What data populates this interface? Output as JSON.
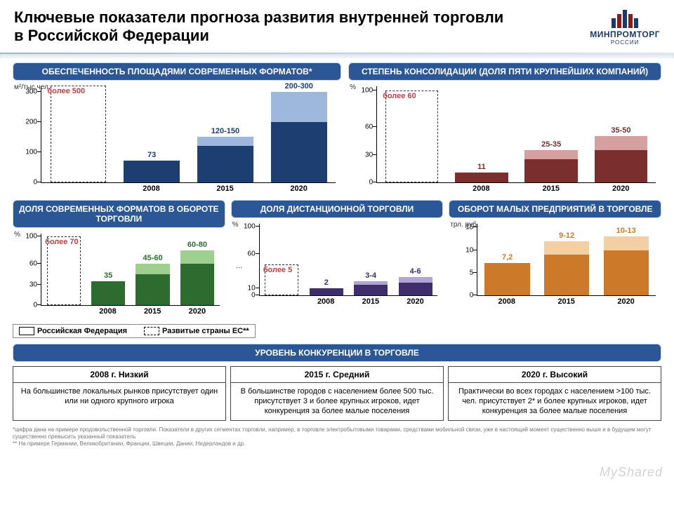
{
  "page_title": "Ключевые показатели прогноза развития внутренней торговли в Российской Федерации",
  "logo": {
    "main": "МИНПРОМТОРГ",
    "sub": "РОССИИ"
  },
  "categories": [
    "2008",
    "2015",
    "2020"
  ],
  "legend": {
    "rf": "Российская Федерация",
    "eu": "Развитые страны ЕС**"
  },
  "chart1": {
    "title": "ОБЕСПЕЧЕННОСТЬ ПЛОЩАДЯМИ СОВРЕМЕННЫХ ФОРМАТОВ*",
    "y_unit": "м²/тыс.чел.",
    "ymax": 320,
    "yticks": [
      0,
      100,
      200,
      300
    ],
    "eu_label": "более 500",
    "eu_value": 500,
    "eu_draw": 320,
    "colors": {
      "low": "#1d3e70",
      "high": "#9db8dc",
      "eu_text": "#c04040"
    },
    "bars": [
      {
        "label": "73",
        "low": 73,
        "high": 73
      },
      {
        "label": "120-150",
        "low": 120,
        "high": 150
      },
      {
        "label": "200-300",
        "low": 200,
        "high": 300
      }
    ]
  },
  "chart2": {
    "title": "СТЕПЕНЬ КОНСОЛИДАЦИИ (ДОЛЯ ПЯТИ КРУПНЕЙШИХ КОМПАНИЙ)",
    "y_unit": "%",
    "ymax": 105,
    "yticks": [
      0,
      30,
      60,
      100
    ],
    "eu_label": "более 60",
    "eu_value": 60,
    "eu_draw": 100,
    "colors": {
      "low": "#7a2e2e",
      "high": "#d7a0a0",
      "eu_text": "#c04040"
    },
    "bars": [
      {
        "label": "11",
        "low": 11,
        "high": 11
      },
      {
        "label": "25-35",
        "low": 25,
        "high": 35
      },
      {
        "label": "35-50",
        "low": 35,
        "high": 50
      }
    ]
  },
  "chart3": {
    "title": "ДОЛЯ СОВРЕМЕННЫХ ФОРМАТОВ В ОБОРОТЕ ТОРГОВЛИ",
    "y_unit": "%",
    "ymax": 105,
    "yticks": [
      0,
      30,
      60,
      100
    ],
    "eu_label": "более 70",
    "eu_value": 70,
    "eu_draw": 100,
    "colors": {
      "low": "#2e6b2e",
      "high": "#9fcf8f",
      "eu_text": "#c04040"
    },
    "bars": [
      {
        "label": "35",
        "low": 35,
        "high": 35
      },
      {
        "label": "45-60",
        "low": 45,
        "high": 60
      },
      {
        "label": "60-80",
        "low": 60,
        "high": 80
      }
    ]
  },
  "chart4": {
    "title": "ДОЛЯ ДИСТАНЦИОННОЙ ТОРГОВЛИ",
    "y_unit": "%",
    "ymax": 105,
    "yticks": [
      0,
      10,
      60,
      100
    ],
    "ytick_break": true,
    "eu_label": "более 5",
    "eu_value": 5,
    "eu_draw": 45,
    "colors": {
      "low": "#3e2e6b",
      "high": "#b0a4d4",
      "eu_text": "#c04040"
    },
    "bars": [
      {
        "label": "2",
        "low": 2,
        "high": 2,
        "draw_low": 10,
        "draw_high": 10
      },
      {
        "label": "3-4",
        "low": 3,
        "high": 4,
        "draw_low": 15,
        "draw_high": 20
      },
      {
        "label": "4-6",
        "low": 4,
        "high": 6,
        "draw_low": 18,
        "draw_high": 27
      }
    ]
  },
  "chart5": {
    "title": "ОБОРОТ МАЛЫХ ПРЕДПРИЯТИЙ В ТОРГОВЛЕ",
    "y_unit": "трл. руб.",
    "ymax": 16,
    "yticks": [
      0,
      5,
      10,
      15
    ],
    "eu_label": null,
    "colors": {
      "low": "#cc7a29",
      "high": "#f4cfa4"
    },
    "bars": [
      {
        "label": "7,2",
        "low": 7.2,
        "high": 7.2
      },
      {
        "label": "9-12",
        "low": 9,
        "high": 12
      },
      {
        "label": "10-13",
        "low": 10,
        "high": 13
      }
    ]
  },
  "competition": {
    "title": "УРОВЕНЬ КОНКУРЕНЦИИ В ТОРГОВЛЕ",
    "cols": [
      {
        "head": "2008 г. Низкий",
        "body": "На большинстве локальных рынков присутствует один или ни одного крупного игрока"
      },
      {
        "head": "2015 г. Средний",
        "body": "В большинстве городов с населением более 500 тыс. присутствует 3 и более крупных игроков, идет конкуренция за более малые поселения"
      },
      {
        "head": "2020 г. Высокий",
        "body": "Практически во всех городах с населением >100 тыс. чел. присутствует 2* и более крупных игроков, идет конкуренция за более малые поселения"
      }
    ]
  },
  "footnotes": [
    "*цифра дана на примере продовольственной торговли. Показатели в других сегментах торговли, например, в торговле электробытовыми товарами, средствами мобильной связи, уже в настоящий момент существенно выше и в будущем могут существенно превысить указанный показатель",
    "** На примере Германии, Великобритании, Франции, Швеции, Дании, Нидерландов и др."
  ],
  "watermark": "MyShared"
}
